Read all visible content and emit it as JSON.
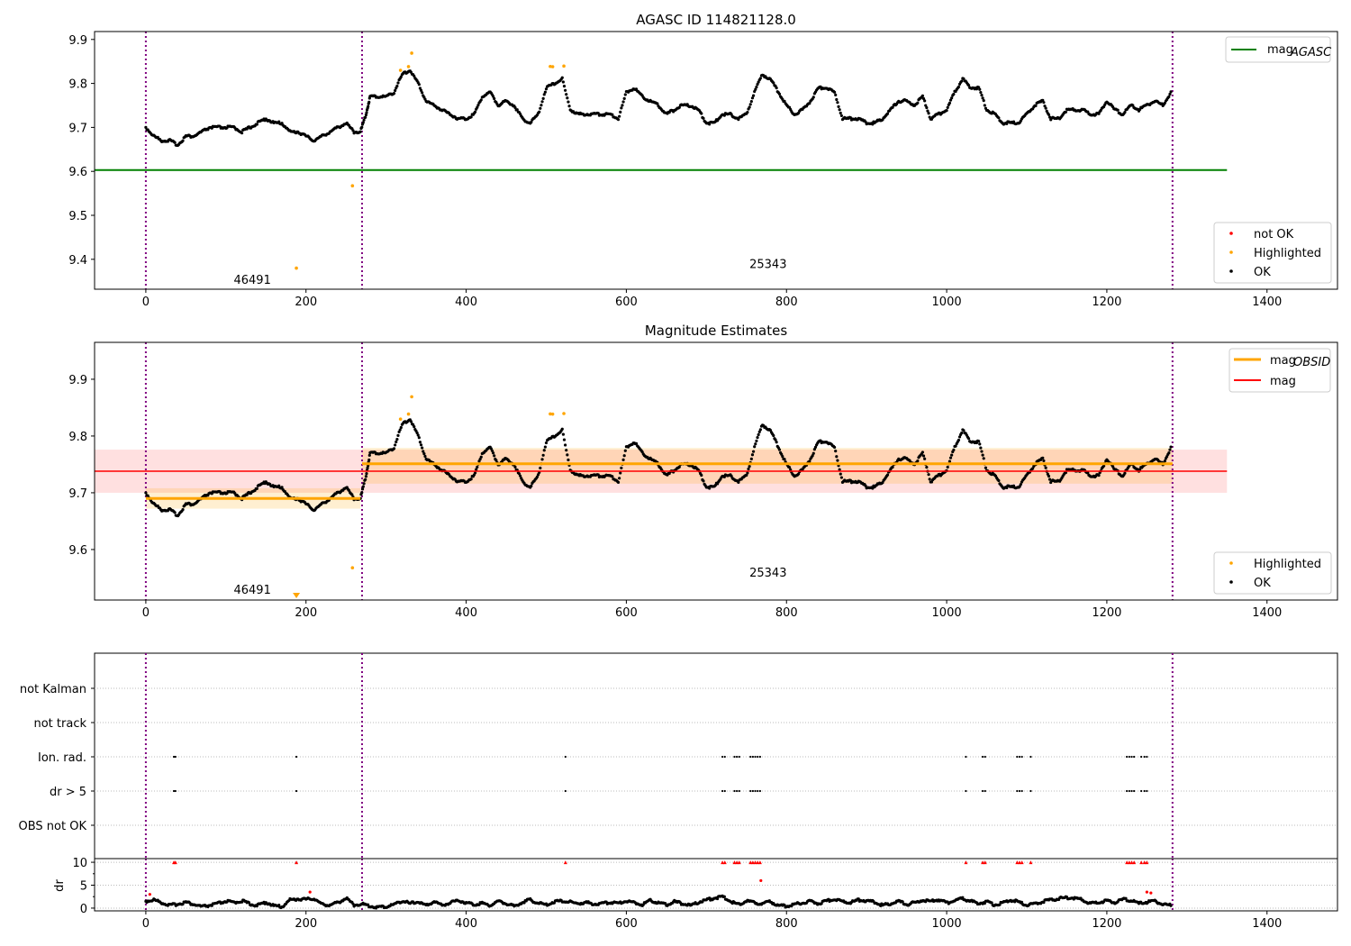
{
  "chart_data": [
    {
      "type": "scatter",
      "title": "AGASC ID 114821128.0",
      "xlim": [
        -64,
        1488
      ],
      "ylim": [
        9.332,
        9.918
      ],
      "xticks": [
        0,
        200,
        400,
        600,
        800,
        1000,
        1200,
        1400
      ],
      "yticks": [
        9.4,
        9.5,
        9.6,
        9.7,
        9.8,
        9.9
      ],
      "legend_lines": [
        "mag_AGASC"
      ],
      "legend_points": [
        "not OK",
        "Highlighted",
        "OK"
      ],
      "mag_agasc": 9.603,
      "mag_agasc_range": [
        -64,
        1350
      ],
      "obsid_bounds": [
        0,
        270,
        1282
      ],
      "obsid_labels": [
        {
          "text": "46491",
          "x": 133,
          "y": 9.355
        },
        {
          "text": "25343",
          "x": 777,
          "y": 9.39
        }
      ]
    },
    {
      "type": "scatter",
      "title": "Magnitude Estimates",
      "xlim": [
        -64,
        1488
      ],
      "ylim": [
        9.511,
        9.965
      ],
      "xticks": [
        0,
        200,
        400,
        600,
        800,
        1000,
        1200,
        1400
      ],
      "yticks": [
        9.6,
        9.7,
        9.8,
        9.9
      ],
      "legend_lines": [
        "mag_OBSID",
        "mag"
      ],
      "legend_points": [
        "Highlighted",
        "OK"
      ],
      "mag": {
        "value": 9.738,
        "low": 9.7,
        "high": 9.776,
        "range": [
          -64,
          1350
        ]
      },
      "mag_obsid": [
        {
          "range": [
            0,
            268
          ],
          "value": 9.69,
          "low": 9.672,
          "high": 9.708
        },
        {
          "range": [
            270,
            1282
          ],
          "value": 9.751,
          "low": 9.716,
          "high": 9.779
        }
      ],
      "obsid_labels": [
        {
          "text": "46491",
          "x": 133,
          "y": 9.53
        },
        {
          "text": "25343",
          "x": 777,
          "y": 9.56
        }
      ]
    },
    {
      "type": "scatter",
      "title": "",
      "categories": [
        "OBS not OK",
        "dr > 5",
        "Ion. rad.",
        "not track",
        "not Kalman"
      ],
      "flag_x": [
        35,
        37,
        188,
        524,
        720,
        723,
        735,
        738,
        741,
        755,
        758,
        761,
        764,
        767,
        1024,
        1045,
        1048,
        1088,
        1091,
        1094,
        1105,
        1225,
        1228,
        1231,
        1234,
        1243,
        1247,
        1250
      ],
      "flagged_categories": [
        "dr > 5",
        "Ion. rad."
      ]
    },
    {
      "type": "scatter",
      "ylabel": "dr",
      "ylim": [
        -0.6,
        10.8
      ],
      "yticks": [
        0,
        5,
        10
      ],
      "dr_ok": [
        [
          0,
          1.5
        ],
        [
          10,
          1.8
        ],
        [
          20,
          1.2
        ],
        [
          30,
          0.6
        ],
        [
          40,
          0.9
        ],
        [
          50,
          1.3
        ],
        [
          60,
          0.8
        ],
        [
          70,
          0.3
        ],
        [
          80,
          0.6
        ],
        [
          90,
          1.0
        ],
        [
          100,
          1.5
        ],
        [
          110,
          1.2
        ],
        [
          120,
          1.6
        ],
        [
          130,
          0.9
        ],
        [
          140,
          0.6
        ],
        [
          150,
          1.3
        ],
        [
          160,
          0.5
        ],
        [
          170,
          0.3
        ],
        [
          180,
          1.8
        ],
        [
          190,
          2.0
        ],
        [
          200,
          1.9
        ],
        [
          210,
          2.1
        ],
        [
          220,
          0.8
        ],
        [
          230,
          0.7
        ],
        [
          240,
          1.2
        ],
        [
          250,
          2.2
        ],
        [
          260,
          0.7
        ],
        [
          270,
          0.9
        ],
        [
          280,
          0.4
        ],
        [
          290,
          0.2
        ],
        [
          300,
          0.3
        ],
        [
          310,
          0.8
        ],
        [
          320,
          1.6
        ],
        [
          330,
          1.0
        ],
        [
          340,
          1.4
        ],
        [
          350,
          0.5
        ],
        [
          360,
          1.5
        ],
        [
          370,
          0.6
        ],
        [
          380,
          1.2
        ],
        [
          390,
          1.7
        ],
        [
          400,
          1.2
        ],
        [
          410,
          0.8
        ],
        [
          420,
          1.1
        ],
        [
          430,
          0.6
        ],
        [
          440,
          1.5
        ],
        [
          450,
          1.0
        ],
        [
          460,
          0.4
        ],
        [
          470,
          1.3
        ],
        [
          480,
          1.8
        ],
        [
          490,
          1.1
        ],
        [
          500,
          0.7
        ],
        [
          510,
          1.4
        ],
        [
          520,
          1.6
        ],
        [
          530,
          1.3
        ],
        [
          540,
          1.0
        ],
        [
          550,
          1.2
        ],
        [
          560,
          0.9
        ],
        [
          570,
          1.0
        ],
        [
          580,
          1.3
        ],
        [
          590,
          1.1
        ],
        [
          600,
          1.6
        ],
        [
          610,
          1.2
        ],
        [
          620,
          0.8
        ],
        [
          630,
          1.7
        ],
        [
          640,
          1.2
        ],
        [
          650,
          0.7
        ],
        [
          660,
          1.4
        ],
        [
          670,
          1.0
        ],
        [
          680,
          0.5
        ],
        [
          690,
          1.3
        ],
        [
          700,
          1.8
        ],
        [
          710,
          2.2
        ],
        [
          720,
          2.5
        ],
        [
          730,
          1.5
        ],
        [
          740,
          0.8
        ],
        [
          750,
          1.6
        ],
        [
          760,
          1.2
        ],
        [
          770,
          0.9
        ],
        [
          780,
          1.4
        ],
        [
          790,
          0.6
        ],
        [
          800,
          0.4
        ],
        [
          810,
          0.8
        ],
        [
          820,
          1.2
        ],
        [
          830,
          1.5
        ],
        [
          840,
          1.0
        ],
        [
          850,
          1.6
        ],
        [
          860,
          1.9
        ],
        [
          870,
          1.5
        ],
        [
          880,
          1.2
        ],
        [
          890,
          1.8
        ],
        [
          900,
          1.6
        ],
        [
          910,
          1.3
        ],
        [
          920,
          0.6
        ],
        [
          930,
          1.0
        ],
        [
          940,
          1.5
        ],
        [
          950,
          0.8
        ],
        [
          960,
          1.2
        ],
        [
          970,
          1.7
        ],
        [
          980,
          1.4
        ],
        [
          990,
          1.9
        ],
        [
          1000,
          1.1
        ],
        [
          1010,
          1.7
        ],
        [
          1020,
          2.1
        ],
        [
          1030,
          1.5
        ],
        [
          1040,
          1.0
        ],
        [
          1050,
          1.4
        ],
        [
          1060,
          0.7
        ],
        [
          1070,
          1.1
        ],
        [
          1080,
          1.8
        ],
        [
          1090,
          1.3
        ],
        [
          1100,
          0.6
        ],
        [
          1110,
          0.9
        ],
        [
          1120,
          1.4
        ],
        [
          1130,
          1.8
        ],
        [
          1140,
          2.1
        ],
        [
          1150,
          2.3
        ],
        [
          1160,
          2.2
        ],
        [
          1170,
          1.8
        ],
        [
          1180,
          1.0
        ],
        [
          1190,
          1.3
        ],
        [
          1200,
          1.6
        ],
        [
          1210,
          1.2
        ],
        [
          1220,
          1.9
        ],
        [
          1230,
          1.7
        ],
        [
          1240,
          1.0
        ],
        [
          1250,
          1.3
        ],
        [
          1260,
          1.5
        ],
        [
          1270,
          0.8
        ],
        [
          1280,
          0.6
        ]
      ],
      "dr_not_ok": [
        [
          5,
          3.0
        ],
        [
          205,
          3.5
        ],
        [
          768,
          6.0
        ],
        [
          1250,
          3.5
        ],
        [
          1255,
          3.3
        ]
      ],
      "dr_clipped": 10
    }
  ],
  "mag_ok": [
    [
      0,
      9.7
    ],
    [
      10,
      9.68
    ],
    [
      20,
      9.67
    ],
    [
      30,
      9.67
    ],
    [
      40,
      9.66
    ],
    [
      50,
      9.68
    ],
    [
      60,
      9.68
    ],
    [
      70,
      9.69
    ],
    [
      80,
      9.7
    ],
    [
      90,
      9.7
    ],
    [
      100,
      9.7
    ],
    [
      110,
      9.7
    ],
    [
      120,
      9.69
    ],
    [
      130,
      9.7
    ],
    [
      140,
      9.71
    ],
    [
      150,
      9.72
    ],
    [
      160,
      9.71
    ],
    [
      170,
      9.71
    ],
    [
      180,
      9.69
    ],
    [
      190,
      9.69
    ],
    [
      200,
      9.68
    ],
    [
      210,
      9.67
    ],
    [
      220,
      9.68
    ],
    [
      230,
      9.69
    ],
    [
      240,
      9.7
    ],
    [
      250,
      9.71
    ],
    [
      260,
      9.69
    ],
    [
      268,
      9.69
    ],
    [
      275,
      9.73
    ],
    [
      280,
      9.77
    ],
    [
      290,
      9.77
    ],
    [
      300,
      9.77
    ],
    [
      310,
      9.78
    ],
    [
      320,
      9.82
    ],
    [
      330,
      9.83
    ],
    [
      340,
      9.8
    ],
    [
      350,
      9.76
    ],
    [
      360,
      9.75
    ],
    [
      370,
      9.74
    ],
    [
      380,
      9.73
    ],
    [
      390,
      9.72
    ],
    [
      400,
      9.72
    ],
    [
      410,
      9.73
    ],
    [
      420,
      9.77
    ],
    [
      430,
      9.78
    ],
    [
      440,
      9.75
    ],
    [
      450,
      9.76
    ],
    [
      460,
      9.75
    ],
    [
      470,
      9.72
    ],
    [
      480,
      9.71
    ],
    [
      490,
      9.73
    ],
    [
      500,
      9.79
    ],
    [
      510,
      9.8
    ],
    [
      520,
      9.81
    ],
    [
      530,
      9.74
    ],
    [
      540,
      9.73
    ],
    [
      550,
      9.73
    ],
    [
      560,
      9.73
    ],
    [
      570,
      9.73
    ],
    [
      580,
      9.73
    ],
    [
      590,
      9.72
    ],
    [
      600,
      9.78
    ],
    [
      610,
      9.79
    ],
    [
      620,
      9.77
    ],
    [
      630,
      9.76
    ],
    [
      640,
      9.75
    ],
    [
      650,
      9.73
    ],
    [
      660,
      9.74
    ],
    [
      670,
      9.75
    ],
    [
      680,
      9.75
    ],
    [
      690,
      9.74
    ],
    [
      700,
      9.71
    ],
    [
      710,
      9.71
    ],
    [
      720,
      9.73
    ],
    [
      730,
      9.73
    ],
    [
      740,
      9.72
    ],
    [
      750,
      9.73
    ],
    [
      760,
      9.78
    ],
    [
      770,
      9.82
    ],
    [
      780,
      9.81
    ],
    [
      790,
      9.78
    ],
    [
      800,
      9.75
    ],
    [
      810,
      9.73
    ],
    [
      820,
      9.74
    ],
    [
      830,
      9.76
    ],
    [
      840,
      9.79
    ],
    [
      850,
      9.79
    ],
    [
      860,
      9.78
    ],
    [
      870,
      9.72
    ],
    [
      880,
      9.72
    ],
    [
      890,
      9.72
    ],
    [
      900,
      9.71
    ],
    [
      910,
      9.71
    ],
    [
      920,
      9.72
    ],
    [
      930,
      9.74
    ],
    [
      940,
      9.76
    ],
    [
      950,
      9.76
    ],
    [
      960,
      9.75
    ],
    [
      970,
      9.77
    ],
    [
      980,
      9.72
    ],
    [
      990,
      9.73
    ],
    [
      1000,
      9.74
    ],
    [
      1010,
      9.78
    ],
    [
      1020,
      9.81
    ],
    [
      1030,
      9.79
    ],
    [
      1040,
      9.79
    ],
    [
      1050,
      9.74
    ],
    [
      1060,
      9.73
    ],
    [
      1070,
      9.71
    ],
    [
      1080,
      9.71
    ],
    [
      1090,
      9.71
    ],
    [
      1100,
      9.73
    ],
    [
      1110,
      9.75
    ],
    [
      1120,
      9.76
    ],
    [
      1130,
      9.72
    ],
    [
      1140,
      9.72
    ],
    [
      1150,
      9.74
    ],
    [
      1160,
      9.74
    ],
    [
      1170,
      9.74
    ],
    [
      1180,
      9.73
    ],
    [
      1190,
      9.73
    ],
    [
      1200,
      9.76
    ],
    [
      1210,
      9.74
    ],
    [
      1220,
      9.73
    ],
    [
      1230,
      9.75
    ],
    [
      1240,
      9.74
    ],
    [
      1250,
      9.75
    ],
    [
      1260,
      9.76
    ],
    [
      1270,
      9.75
    ],
    [
      1280,
      9.78
    ]
  ],
  "mag_highlighted": [
    [
      188,
      9.38
    ],
    [
      258,
      9.57
    ],
    [
      318,
      9.83
    ],
    [
      328,
      9.84
    ],
    [
      332,
      9.87
    ],
    [
      505,
      9.84
    ],
    [
      508,
      9.84
    ],
    [
      522,
      9.84
    ]
  ],
  "colors": {
    "ok": "#000000",
    "not_ok": "#ff0000",
    "highlighted": "#ffa500",
    "agasc": "#008000",
    "mag": "#ff0000",
    "obsid": "#ffa500",
    "bounds": "#800080"
  },
  "legend": {
    "mag_agasc": "mag",
    "agasc_sub": "AGASC",
    "mag_obsid": "mag",
    "obsid_sub": "OBSID",
    "mag": "mag",
    "not_ok": "not OK",
    "highlighted": "Highlighted",
    "ok": "OK"
  }
}
